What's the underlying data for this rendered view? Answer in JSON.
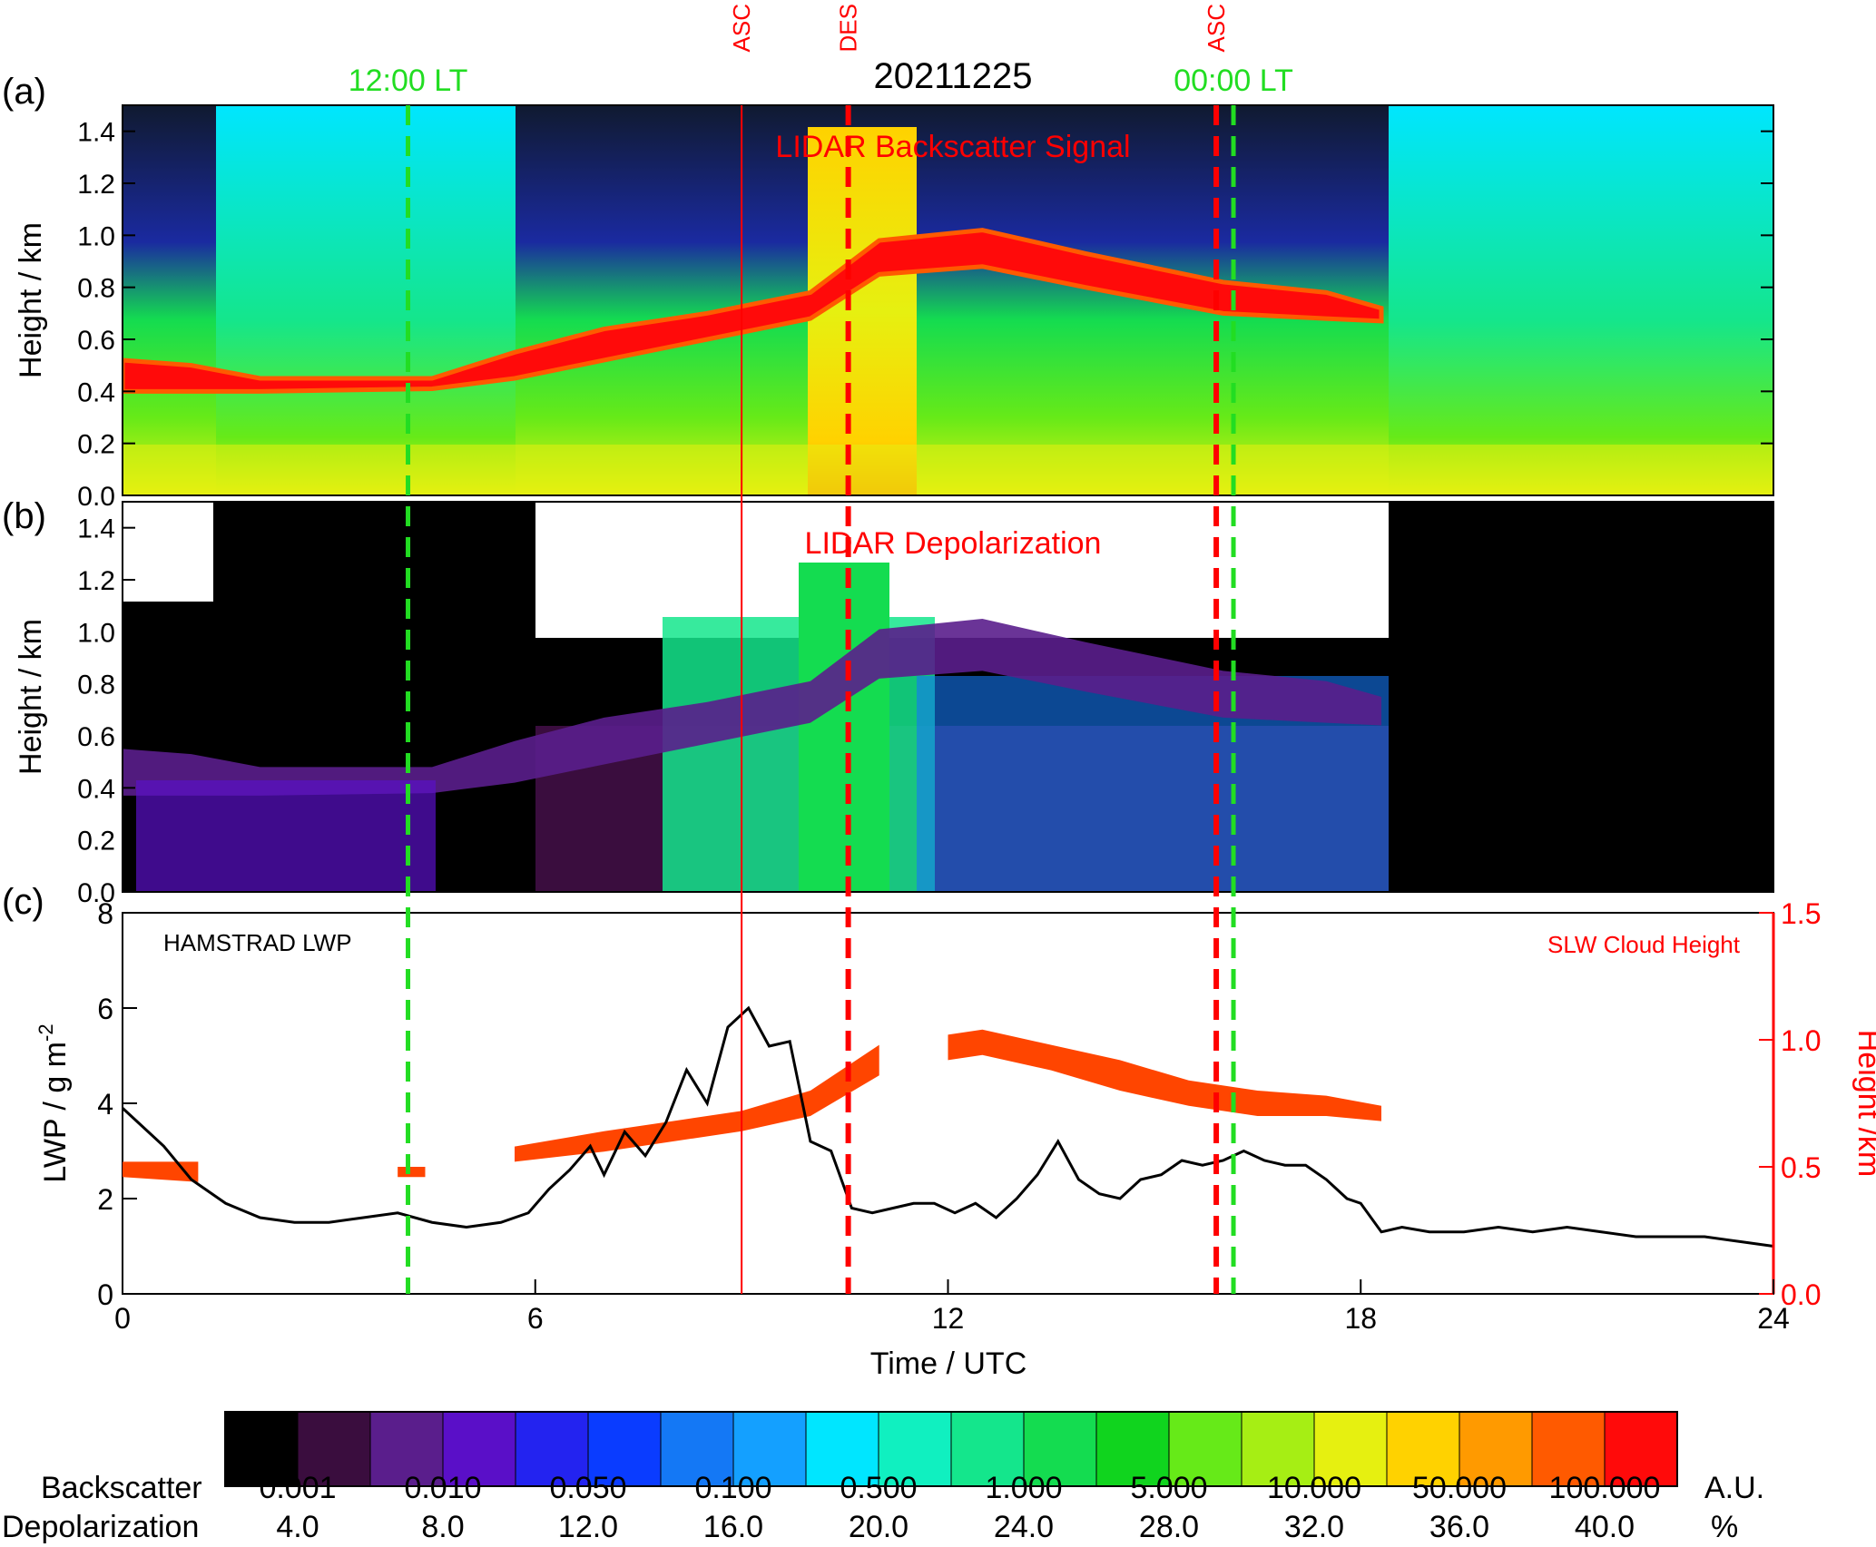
{
  "figure": {
    "date_title": "20211225",
    "panel_labels": [
      "(a)",
      "(b)",
      "(c)"
    ],
    "time_markers": [
      {
        "label": "12:00 LT",
        "time": 4.15,
        "color": "#22dd22"
      },
      {
        "label": "00:00 LT",
        "time": 16.15,
        "color": "#22dd22"
      }
    ],
    "event_markers": [
      {
        "label": "ASC",
        "time": 9.0,
        "style": "solid",
        "color": "#ff0000"
      },
      {
        "label": "DES",
        "time": 10.55,
        "style": "dashed",
        "color": "#ff0000"
      },
      {
        "label": "ASC",
        "time": 15.9,
        "style": "dashed",
        "color": "#ff0000"
      }
    ],
    "colors": {
      "lwp_line": "#000000",
      "slw_fill": "#ff4500",
      "right_axis": "#ff0000"
    }
  },
  "chart_data": [
    {
      "type": "heatmap",
      "panel": "(a)",
      "title": "LIDAR Backscatter Signal",
      "ylabel": "Height / km",
      "ylim": [
        0,
        1.5
      ],
      "yticks": [
        "0.0",
        "0.2",
        "0.4",
        "0.6",
        "0.8",
        "1.0",
        "1.2",
        "1.4"
      ],
      "xlim": [
        0,
        24
      ],
      "cloud_layer": [
        {
          "t": 0.0,
          "base": 0.4,
          "top": 0.52
        },
        {
          "t": 1.0,
          "base": 0.4,
          "top": 0.5
        },
        {
          "t": 2.0,
          "base": 0.4,
          "top": 0.45
        },
        {
          "t": 4.5,
          "base": 0.41,
          "top": 0.45
        },
        {
          "t": 5.7,
          "base": 0.45,
          "top": 0.55
        },
        {
          "t": 7.0,
          "base": 0.52,
          "top": 0.64
        },
        {
          "t": 8.5,
          "base": 0.6,
          "top": 0.7
        },
        {
          "t": 10.0,
          "base": 0.68,
          "top": 0.78
        },
        {
          "t": 11.0,
          "base": 0.85,
          "top": 0.98
        },
        {
          "t": 12.5,
          "base": 0.88,
          "top": 1.02
        },
        {
          "t": 14.0,
          "base": 0.8,
          "top": 0.93
        },
        {
          "t": 16.0,
          "base": 0.7,
          "top": 0.82
        },
        {
          "t": 17.5,
          "base": 0.68,
          "top": 0.78
        },
        {
          "t": 18.3,
          "base": 0.67,
          "top": 0.72
        }
      ]
    },
    {
      "type": "heatmap",
      "panel": "(b)",
      "title": "LIDAR Depolarization",
      "ylabel": "Height / km",
      "ylim": [
        0,
        1.5
      ],
      "yticks": [
        "0.0",
        "0.2",
        "0.4",
        "0.6",
        "0.8",
        "1.0",
        "1.2",
        "1.4"
      ],
      "xlim": [
        0,
        24
      ]
    },
    {
      "type": "line",
      "panel": "(c)",
      "xlabel": "Time / UTC",
      "xlim": [
        0,
        24
      ],
      "xticks": [
        "0",
        "6",
        "12",
        "18",
        "24"
      ],
      "ylabel": "LWP / g m",
      "ylabel_sup": "-2",
      "ylim": [
        0,
        8
      ],
      "yticks": [
        "0",
        "2",
        "4",
        "6",
        "8"
      ],
      "y2label": "Height /km",
      "y2lim": [
        0,
        1.5
      ],
      "y2ticks": [
        "0.0",
        "0.5",
        "1.0",
        "1.5"
      ],
      "series": [
        {
          "name": "HAMSTRAD LWP",
          "x": [
            0,
            0.3,
            0.6,
            1.0,
            1.5,
            2.0,
            2.5,
            3.0,
            3.5,
            4.0,
            4.5,
            5.0,
            5.5,
            5.9,
            6.2,
            6.5,
            6.8,
            7.0,
            7.3,
            7.6,
            7.9,
            8.2,
            8.5,
            8.8,
            9.1,
            9.4,
            9.7,
            10.0,
            10.3,
            10.6,
            10.9,
            11.2,
            11.5,
            11.8,
            12.1,
            12.4,
            12.7,
            13.0,
            13.3,
            13.6,
            13.9,
            14.2,
            14.5,
            14.8,
            15.1,
            15.4,
            15.7,
            16.0,
            16.3,
            16.6,
            16.9,
            17.2,
            17.5,
            17.8,
            18.0,
            18.3,
            18.6,
            19.0,
            19.5,
            20.0,
            20.5,
            21.0,
            21.5,
            22.0,
            22.5,
            23.0,
            23.5,
            24.0
          ],
          "values": [
            3.9,
            3.5,
            3.1,
            2.4,
            1.9,
            1.6,
            1.5,
            1.5,
            1.6,
            1.7,
            1.5,
            1.4,
            1.5,
            1.7,
            2.2,
            2.6,
            3.1,
            2.5,
            3.4,
            2.9,
            3.6,
            4.7,
            4.0,
            5.6,
            6.0,
            5.2,
            5.3,
            3.2,
            3.0,
            1.8,
            1.7,
            1.8,
            1.9,
            1.9,
            1.7,
            1.9,
            1.6,
            2.0,
            2.5,
            3.2,
            2.4,
            2.1,
            2.0,
            2.4,
            2.5,
            2.8,
            2.7,
            2.8,
            3.0,
            2.8,
            2.7,
            2.7,
            2.4,
            2.0,
            1.9,
            1.3,
            1.4,
            1.3,
            1.3,
            1.4,
            1.3,
            1.4,
            1.3,
            1.2,
            1.2,
            1.2,
            1.1,
            1.0
          ]
        },
        {
          "name": "SLW Cloud Height",
          "axis": "right",
          "x": [
            0.0,
            1.1,
            4.0,
            4.4,
            5.7,
            7.0,
            8.0,
            9.0,
            10.0,
            11.0,
            12.0,
            12.5,
            13.5,
            14.5,
            15.5,
            16.5,
            17.5,
            18.3
          ],
          "base": [
            0.46,
            0.44,
            0.46,
            0.46,
            0.52,
            0.56,
            0.6,
            0.64,
            0.7,
            0.86,
            0.92,
            0.94,
            0.88,
            0.8,
            0.74,
            0.7,
            0.7,
            0.68
          ],
          "top": [
            0.52,
            0.52,
            0.5,
            0.5,
            0.58,
            0.64,
            0.68,
            0.72,
            0.8,
            0.98,
            1.02,
            1.04,
            0.98,
            0.92,
            0.84,
            0.8,
            0.78,
            0.74
          ]
        }
      ]
    }
  ],
  "colorbar": {
    "colors": [
      "#000000",
      "#3a0d3e",
      "#5a1e8c",
      "#5a0fc8",
      "#2323f0",
      "#0a3cff",
      "#1478f5",
      "#14a0ff",
      "#00e6ff",
      "#10f0c0",
      "#14e68c",
      "#14dc50",
      "#10d41e",
      "#66ea18",
      "#a6ee14",
      "#e6f010",
      "#ffd200",
      "#ff9a00",
      "#ff5a00",
      "#ff0a0a"
    ],
    "row1_label": "Backscatter",
    "row1_ticks": [
      "0.001",
      "0.010",
      "0.050",
      "0.100",
      "0.500",
      "1.000",
      "5.000",
      "10.000",
      "50.000",
      "100.000"
    ],
    "row1_unit": "A.U.",
    "row2_label": "Depolarization",
    "row2_ticks": [
      "4.0",
      "8.0",
      "12.0",
      "16.0",
      "20.0",
      "24.0",
      "28.0",
      "32.0",
      "36.0",
      "40.0"
    ],
    "row2_unit": "%"
  }
}
